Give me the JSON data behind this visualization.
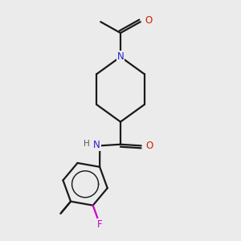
{
  "bg": "#ebebeb",
  "bond_color": "#1a1a1a",
  "N_color": "#2222cc",
  "O_color": "#cc2200",
  "F_color": "#cc00cc",
  "H_color": "#555555",
  "lw": 1.6,
  "figsize": [
    3.0,
    3.0
  ],
  "dpi": 100,
  "xlim": [
    1.0,
    9.0
  ],
  "ylim": [
    0.5,
    9.5
  ]
}
